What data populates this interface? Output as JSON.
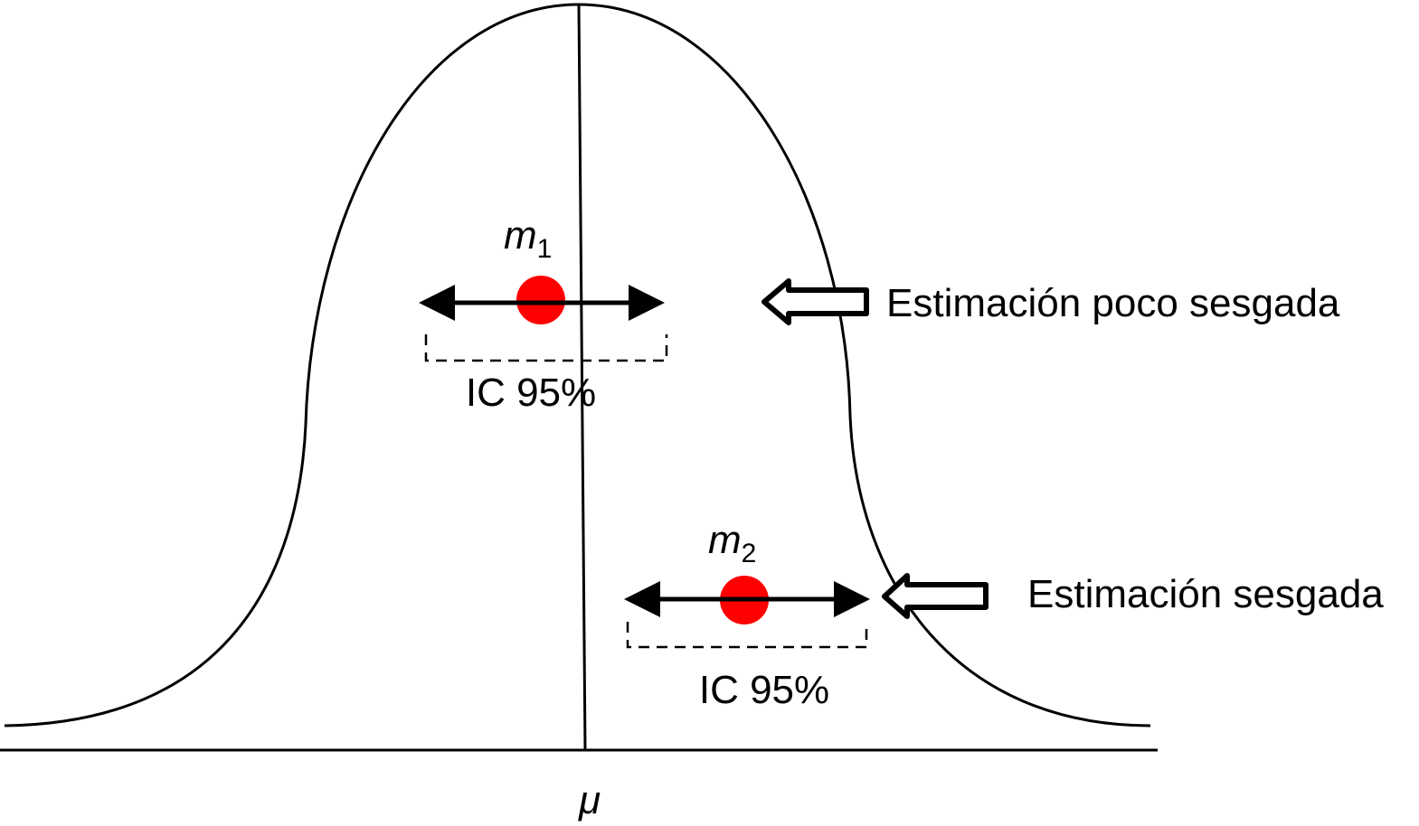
{
  "axis_label": "μ",
  "estimates": [
    {
      "label": "m",
      "subscript": "1",
      "ci_label": "IC 95%",
      "annotation": "Estimación poco sesgada"
    },
    {
      "label": "m",
      "subscript": "2",
      "ci_label": "IC 95%",
      "annotation": "Estimación sesgada"
    }
  ],
  "colors": {
    "point": "#ff0000",
    "line": "#000000"
  }
}
